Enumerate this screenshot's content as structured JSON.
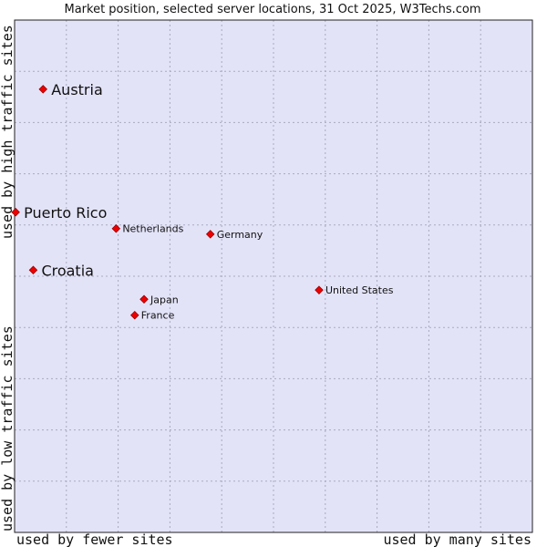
{
  "chart_data": {
    "type": "scatter",
    "title": "Market position, selected server locations, 31 Oct 2025, W3Techs.com",
    "xlabel_left": "used by fewer sites",
    "xlabel_right": "used by many sites",
    "ylabel_top": "used by high traffic sites",
    "ylabel_bottom": "used by low traffic sites",
    "xlim": [
      0,
      100
    ],
    "ylim": [
      0,
      100
    ],
    "grid": true,
    "colors": {
      "plot_bg": "#e3e3f8",
      "grid": "#a9a9bf",
      "marker": "#ee0000",
      "marker_edge": "#990000",
      "frame": "#222222"
    },
    "points": [
      {
        "label": "Austria",
        "x": 5.5,
        "y": 86.5,
        "emphasis": true
      },
      {
        "label": "Puerto Rico",
        "x": 0.2,
        "y": 62.5,
        "emphasis": true
      },
      {
        "label": "Netherlands",
        "x": 19.6,
        "y": 59.3,
        "emphasis": false
      },
      {
        "label": "Germany",
        "x": 37.8,
        "y": 58.2,
        "emphasis": false
      },
      {
        "label": "Croatia",
        "x": 3.6,
        "y": 51.2,
        "emphasis": true
      },
      {
        "label": "United States",
        "x": 58.8,
        "y": 47.3,
        "emphasis": false
      },
      {
        "label": "Japan",
        "x": 25.0,
        "y": 45.5,
        "emphasis": false
      },
      {
        "label": "France",
        "x": 23.2,
        "y": 42.4,
        "emphasis": false
      }
    ]
  }
}
